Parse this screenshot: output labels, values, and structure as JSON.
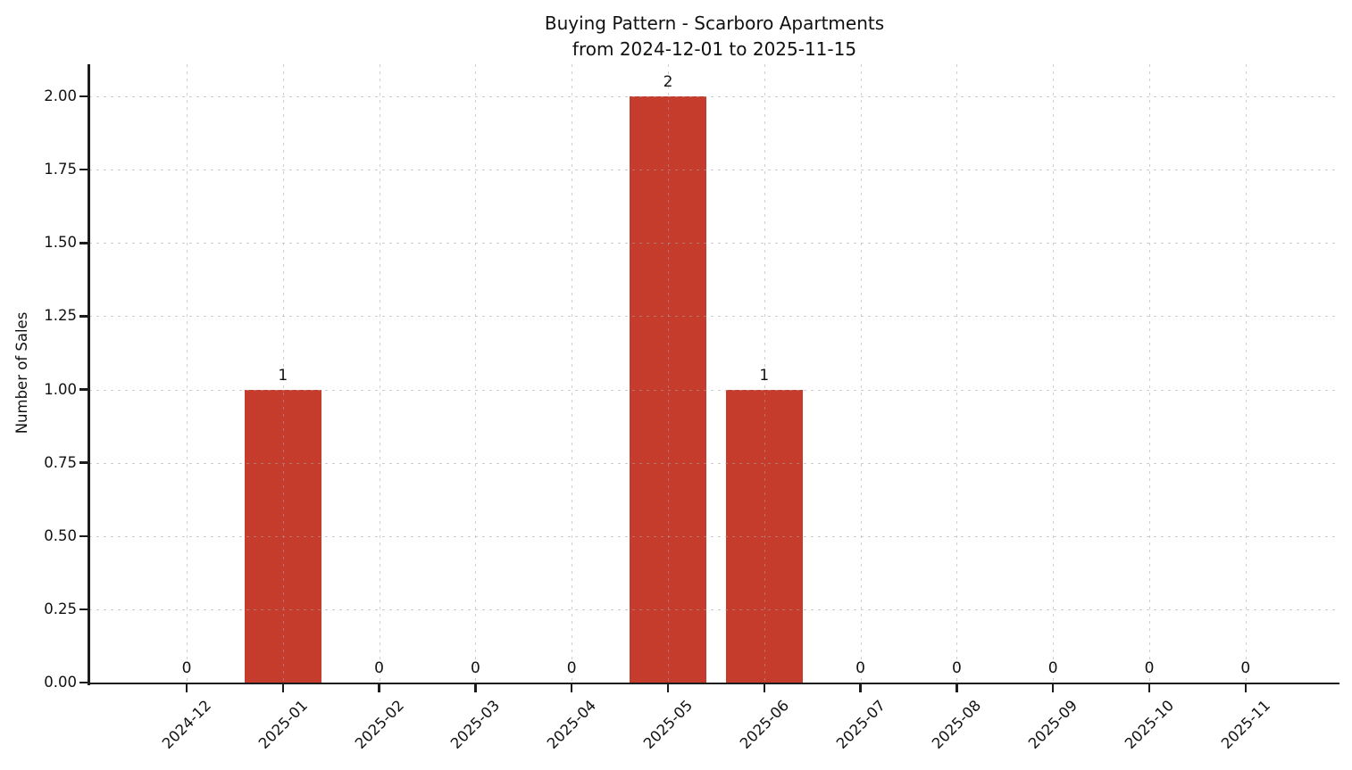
{
  "figure": {
    "title_line1": "Buying Pattern - Scarboro Apartments",
    "title_line2": "from 2024-12-01 to 2025-11-15"
  },
  "chart_data": {
    "type": "bar",
    "title": "Buying Pattern - Scarboro Apartments\nfrom 2024-12-01 to 2025-11-15",
    "xlabel": "",
    "ylabel": "Number of Sales",
    "categories": [
      "2024-12",
      "2025-01",
      "2025-02",
      "2025-03",
      "2025-04",
      "2025-05",
      "2025-06",
      "2025-07",
      "2025-08",
      "2025-09",
      "2025-10",
      "2025-11"
    ],
    "values": [
      0,
      1,
      0,
      0,
      0,
      2,
      1,
      0,
      0,
      0,
      0,
      0
    ],
    "bar_labels": [
      "0",
      "1",
      "0",
      "0",
      "0",
      "2",
      "1",
      "0",
      "0",
      "0",
      "0",
      "0"
    ],
    "yticks": [
      0,
      0.25,
      0.5,
      0.75,
      1,
      1.25,
      1.5,
      1.75,
      2
    ],
    "ytick_labels": [
      "0.00",
      "0.25",
      "0.50",
      "0.75",
      "1.00",
      "1.25",
      "1.50",
      "1.75",
      "2.00"
    ],
    "ylim": [
      0,
      2.11
    ],
    "bar_color": "#c53b2c",
    "grid": true,
    "grid_style": "dashed",
    "x_tick_rotation": 45,
    "legend": "none"
  }
}
